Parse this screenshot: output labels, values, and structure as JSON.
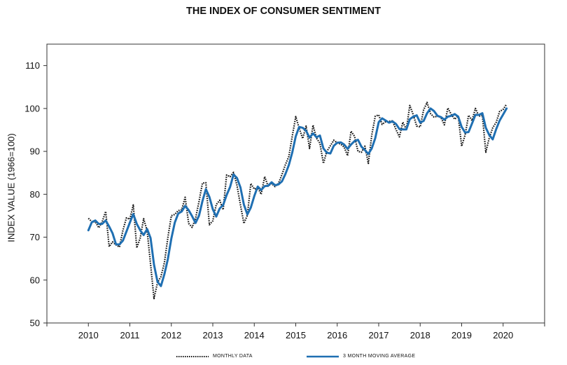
{
  "chart_data": {
    "type": "line",
    "title": "THE INDEX OF CONSUMER SENTIMENT",
    "xlabel": "",
    "ylabel": "INDEX VALUE (1966=100)",
    "ylim": [
      50,
      115
    ],
    "xlim": [
      2009.0,
      2021.0
    ],
    "yticks": [
      50,
      60,
      70,
      80,
      90,
      100,
      110
    ],
    "xticks": [
      2010,
      2011,
      2012,
      2013,
      2014,
      2015,
      2016,
      2017,
      2018,
      2019,
      2020
    ],
    "grid": false,
    "legend_position": "bottom",
    "series": [
      {
        "name": "MONTHLY DATA",
        "style": "dotted",
        "color": "#111111",
        "x": [
          2010.0,
          2010.083,
          2010.167,
          2010.25,
          2010.333,
          2010.417,
          2010.5,
          2010.583,
          2010.667,
          2010.75,
          2010.833,
          2010.917,
          2011.0,
          2011.083,
          2011.167,
          2011.25,
          2011.333,
          2011.417,
          2011.5,
          2011.583,
          2011.667,
          2011.75,
          2011.833,
          2011.917,
          2012.0,
          2012.083,
          2012.167,
          2012.25,
          2012.333,
          2012.417,
          2012.5,
          2012.583,
          2012.667,
          2012.75,
          2012.833,
          2012.917,
          2013.0,
          2013.083,
          2013.167,
          2013.25,
          2013.333,
          2013.417,
          2013.5,
          2013.583,
          2013.667,
          2013.75,
          2013.833,
          2013.917,
          2014.0,
          2014.083,
          2014.167,
          2014.25,
          2014.333,
          2014.417,
          2014.5,
          2014.583,
          2014.667,
          2014.75,
          2014.833,
          2014.917,
          2015.0,
          2015.083,
          2015.167,
          2015.25,
          2015.333,
          2015.417,
          2015.5,
          2015.583,
          2015.667,
          2015.75,
          2015.833,
          2015.917,
          2016.0,
          2016.083,
          2016.167,
          2016.25,
          2016.333,
          2016.417,
          2016.5,
          2016.583,
          2016.667,
          2016.75,
          2016.833,
          2016.917,
          2017.0,
          2017.083,
          2017.167,
          2017.25,
          2017.333,
          2017.417,
          2017.5,
          2017.583,
          2017.667,
          2017.75,
          2017.833,
          2017.917,
          2018.0,
          2018.083,
          2018.167,
          2018.25,
          2018.333,
          2018.417,
          2018.5,
          2018.583,
          2018.667,
          2018.75,
          2018.833,
          2018.917,
          2019.0,
          2019.083,
          2019.167,
          2019.25,
          2019.333,
          2019.417,
          2019.5,
          2019.583,
          2019.667,
          2019.75,
          2019.833,
          2019.917,
          2020.0,
          2020.083
        ],
        "values": [
          74.4,
          73.6,
          73.6,
          72.2,
          73.6,
          76.0,
          67.8,
          68.9,
          68.2,
          67.7,
          71.6,
          74.5,
          74.2,
          77.5,
          67.5,
          69.8,
          74.3,
          71.5,
          63.7,
          55.7,
          59.4,
          60.8,
          64.1,
          69.9,
          75.0,
          75.3,
          76.2,
          76.4,
          79.3,
          73.2,
          72.3,
          74.3,
          78.3,
          82.6,
          82.7,
          72.9,
          73.8,
          77.6,
          78.6,
          76.4,
          84.5,
          84.1,
          85.1,
          82.1,
          77.5,
          73.2,
          75.1,
          82.5,
          81.2,
          81.6,
          80.0,
          84.1,
          81.9,
          82.5,
          81.8,
          82.5,
          84.6,
          86.9,
          88.8,
          93.6,
          98.1,
          95.4,
          93.0,
          95.9,
          90.7,
          96.1,
          93.1,
          91.9,
          87.2,
          90.0,
          91.3,
          92.6,
          92.0,
          91.7,
          91.0,
          89.0,
          94.7,
          93.5,
          90.0,
          89.8,
          91.2,
          87.2,
          93.8,
          98.2,
          98.5,
          96.3,
          96.9,
          97.0,
          97.1,
          95.1,
          93.4,
          96.8,
          95.1,
          100.7,
          98.5,
          95.9,
          95.7,
          99.7,
          101.4,
          98.8,
          98.0,
          98.2,
          97.9,
          96.2,
          100.1,
          98.6,
          97.5,
          98.3,
          91.2,
          93.8,
          98.4,
          97.2,
          100.0,
          98.2,
          98.4,
          89.8,
          93.2,
          95.5,
          96.8,
          99.3,
          99.8,
          101.0
        ]
      },
      {
        "name": "3 MONTH MOVING AVERAGE",
        "style": "solid",
        "color": "#1f6fb2",
        "x": [
          2010.0,
          2010.083,
          2010.167,
          2010.25,
          2010.333,
          2010.417,
          2010.5,
          2010.583,
          2010.667,
          2010.75,
          2010.833,
          2010.917,
          2011.0,
          2011.083,
          2011.167,
          2011.25,
          2011.333,
          2011.417,
          2011.5,
          2011.583,
          2011.667,
          2011.75,
          2011.833,
          2011.917,
          2012.0,
          2012.083,
          2012.167,
          2012.25,
          2012.333,
          2012.417,
          2012.5,
          2012.583,
          2012.667,
          2012.75,
          2012.833,
          2012.917,
          2013.0,
          2013.083,
          2013.167,
          2013.25,
          2013.333,
          2013.417,
          2013.5,
          2013.583,
          2013.667,
          2013.75,
          2013.833,
          2013.917,
          2014.0,
          2014.083,
          2014.167,
          2014.25,
          2014.333,
          2014.417,
          2014.5,
          2014.583,
          2014.667,
          2014.75,
          2014.833,
          2014.917,
          2015.0,
          2015.083,
          2015.167,
          2015.25,
          2015.333,
          2015.417,
          2015.5,
          2015.583,
          2015.667,
          2015.75,
          2015.833,
          2015.917,
          2016.0,
          2016.083,
          2016.167,
          2016.25,
          2016.333,
          2016.417,
          2016.5,
          2016.583,
          2016.667,
          2016.75,
          2016.833,
          2016.917,
          2017.0,
          2017.083,
          2017.167,
          2017.25,
          2017.333,
          2017.417,
          2017.5,
          2017.583,
          2017.667,
          2017.75,
          2017.833,
          2017.917,
          2018.0,
          2018.083,
          2018.167,
          2018.25,
          2018.333,
          2018.417,
          2018.5,
          2018.583,
          2018.667,
          2018.75,
          2018.833,
          2018.917,
          2019.0,
          2019.083,
          2019.167,
          2019.25,
          2019.333,
          2019.417,
          2019.5,
          2019.583,
          2019.667,
          2019.75,
          2019.833,
          2019.917,
          2020.0,
          2020.083
        ],
        "values": [
          71.6,
          73.5,
          73.9,
          73.1,
          73.1,
          73.9,
          72.5,
          70.9,
          68.3,
          68.3,
          69.2,
          71.3,
          73.4,
          75.4,
          73.1,
          71.6,
          70.5,
          71.9,
          69.8,
          63.6,
          59.6,
          58.6,
          61.4,
          64.9,
          69.7,
          73.4,
          75.5,
          76.0,
          77.3,
          76.3,
          74.9,
          73.3,
          75.0,
          78.4,
          81.2,
          79.4,
          76.5,
          74.8,
          76.7,
          77.5,
          79.8,
          81.7,
          84.6,
          83.8,
          81.6,
          77.6,
          75.3,
          76.9,
          79.6,
          81.8,
          81.0,
          81.9,
          82.0,
          82.8,
          82.1,
          82.3,
          83.0,
          84.7,
          86.8,
          89.8,
          93.5,
          95.7,
          95.5,
          94.8,
          93.2,
          94.2,
          93.3,
          93.7,
          90.7,
          89.7,
          89.5,
          91.3,
          92.0,
          92.1,
          91.6,
          90.6,
          91.6,
          92.4,
          92.7,
          91.1,
          90.3,
          89.4,
          90.7,
          93.1,
          96.8,
          97.7,
          97.2,
          96.7,
          97.0,
          96.4,
          95.2,
          95.1,
          95.1,
          97.5,
          98.1,
          98.4,
          96.7,
          97.1,
          98.9,
          100.0,
          99.4,
          98.3,
          98.0,
          97.4,
          98.1,
          98.3,
          98.7,
          98.1,
          95.7,
          94.4,
          94.5,
          96.5,
          98.5,
          98.5,
          98.9,
          95.5,
          93.8,
          92.8,
          95.2,
          97.2,
          98.6,
          100.0
        ]
      }
    ]
  }
}
